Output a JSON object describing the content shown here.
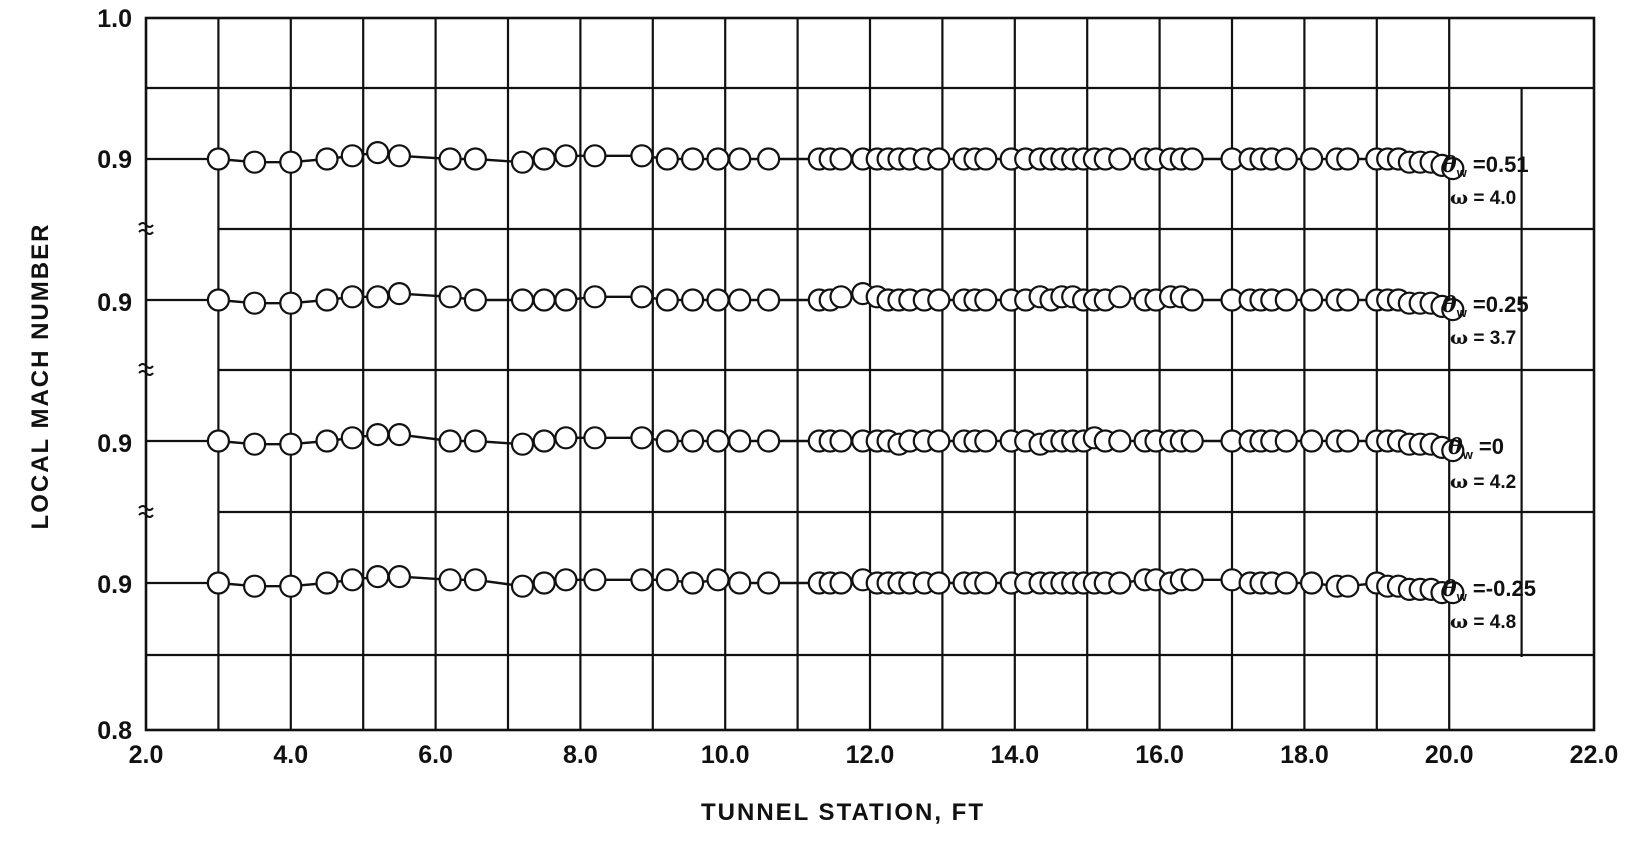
{
  "chart_data": {
    "type": "scatter",
    "title": "",
    "xlabel": "TUNNEL STATION, FT",
    "ylabel": "LOCAL MACH NUMBER",
    "xlim": [
      2.0,
      22.0
    ],
    "x_ticks": [
      "2.0",
      "4.0",
      "6.0",
      "8.0",
      "10.0",
      "12.0",
      "14.0",
      "16.0",
      "18.0",
      "20.0",
      "22.0"
    ],
    "y_ticks": [
      "1.0",
      "0.9",
      "0.9",
      "0.9",
      "0.9",
      "0.8"
    ],
    "grid": true,
    "annotations": [
      {
        "theta": "0.51",
        "omega": "4.0"
      },
      {
        "theta": "0.25",
        "omega": "3.7"
      },
      {
        "theta": "0",
        "omega": "4.2"
      },
      {
        "theta": "-0.25",
        "omega": "4.8"
      }
    ],
    "series": [
      {
        "x": [
          3.0,
          3.5,
          4.0,
          4.5,
          4.85,
          5.2,
          5.5,
          6.2,
          6.55,
          7.2,
          7.5,
          7.8,
          8.2,
          8.85,
          9.2,
          9.55,
          9.9,
          10.2,
          10.6,
          11.3,
          11.45,
          11.6,
          11.9,
          12.1,
          12.25,
          12.4,
          12.55,
          12.75,
          12.95,
          13.3,
          13.45,
          13.6,
          13.95,
          14.15,
          14.35,
          14.5,
          14.65,
          14.8,
          14.95,
          15.1,
          15.25,
          15.45,
          15.8,
          15.95,
          16.15,
          16.3,
          16.45,
          17.0,
          17.25,
          17.4,
          17.55,
          17.75,
          18.1,
          18.45,
          18.6,
          19.0,
          19.15,
          19.3,
          19.45,
          19.6,
          19.75,
          19.9,
          20.05
        ],
        "y": [
          0.9,
          0.899,
          0.899,
          0.9,
          0.901,
          0.902,
          0.901,
          0.9,
          0.9,
          0.899,
          0.9,
          0.901,
          0.901,
          0.901,
          0.9,
          0.9,
          0.9,
          0.9,
          0.9,
          0.9,
          0.9,
          0.9,
          0.9,
          0.9,
          0.9,
          0.9,
          0.9,
          0.9,
          0.9,
          0.9,
          0.9,
          0.9,
          0.9,
          0.9,
          0.9,
          0.9,
          0.9,
          0.9,
          0.9,
          0.9,
          0.9,
          0.9,
          0.9,
          0.9,
          0.9,
          0.9,
          0.9,
          0.9,
          0.9,
          0.9,
          0.9,
          0.9,
          0.9,
          0.9,
          0.9,
          0.9,
          0.9,
          0.9,
          0.899,
          0.899,
          0.899,
          0.898,
          0.897
        ]
      },
      {
        "x": [
          3.0,
          3.5,
          4.0,
          4.5,
          4.85,
          5.2,
          5.5,
          6.2,
          6.55,
          7.2,
          7.5,
          7.8,
          8.2,
          8.85,
          9.2,
          9.55,
          9.9,
          10.2,
          10.6,
          11.3,
          11.45,
          11.6,
          11.9,
          12.1,
          12.25,
          12.4,
          12.55,
          12.75,
          12.95,
          13.3,
          13.45,
          13.6,
          13.95,
          14.15,
          14.35,
          14.5,
          14.65,
          14.8,
          14.95,
          15.1,
          15.25,
          15.45,
          15.8,
          15.95,
          16.15,
          16.3,
          16.45,
          17.0,
          17.25,
          17.4,
          17.55,
          17.75,
          18.1,
          18.45,
          18.6,
          19.0,
          19.15,
          19.3,
          19.45,
          19.6,
          19.75,
          19.9,
          20.05
        ],
        "y": [
          0.9,
          0.899,
          0.899,
          0.9,
          0.901,
          0.901,
          0.902,
          0.901,
          0.9,
          0.9,
          0.9,
          0.9,
          0.901,
          0.901,
          0.9,
          0.9,
          0.9,
          0.9,
          0.9,
          0.9,
          0.9,
          0.901,
          0.902,
          0.901,
          0.9,
          0.9,
          0.9,
          0.9,
          0.9,
          0.9,
          0.9,
          0.9,
          0.9,
          0.9,
          0.901,
          0.9,
          0.901,
          0.901,
          0.9,
          0.9,
          0.9,
          0.901,
          0.9,
          0.9,
          0.901,
          0.901,
          0.9,
          0.9,
          0.9,
          0.9,
          0.9,
          0.9,
          0.9,
          0.9,
          0.9,
          0.9,
          0.9,
          0.9,
          0.899,
          0.899,
          0.899,
          0.898,
          0.897
        ]
      },
      {
        "x": [
          3.0,
          3.5,
          4.0,
          4.5,
          4.85,
          5.2,
          5.5,
          6.2,
          6.55,
          7.2,
          7.5,
          7.8,
          8.2,
          8.85,
          9.2,
          9.55,
          9.9,
          10.2,
          10.6,
          11.3,
          11.45,
          11.6,
          11.9,
          12.1,
          12.25,
          12.4,
          12.55,
          12.75,
          12.95,
          13.3,
          13.45,
          13.6,
          13.95,
          14.15,
          14.35,
          14.5,
          14.65,
          14.8,
          14.95,
          15.1,
          15.25,
          15.45,
          15.8,
          15.95,
          16.15,
          16.3,
          16.45,
          17.0,
          17.25,
          17.4,
          17.55,
          17.75,
          18.1,
          18.45,
          18.6,
          19.0,
          19.15,
          19.3,
          19.45,
          19.6,
          19.75,
          19.9,
          20.05
        ],
        "y": [
          0.9,
          0.899,
          0.899,
          0.9,
          0.901,
          0.902,
          0.902,
          0.9,
          0.9,
          0.899,
          0.9,
          0.901,
          0.901,
          0.901,
          0.9,
          0.9,
          0.9,
          0.9,
          0.9,
          0.9,
          0.9,
          0.9,
          0.9,
          0.9,
          0.9,
          0.899,
          0.9,
          0.9,
          0.9,
          0.9,
          0.9,
          0.9,
          0.9,
          0.9,
          0.899,
          0.9,
          0.9,
          0.9,
          0.9,
          0.901,
          0.9,
          0.9,
          0.9,
          0.9,
          0.9,
          0.9,
          0.9,
          0.9,
          0.9,
          0.9,
          0.9,
          0.9,
          0.9,
          0.9,
          0.9,
          0.9,
          0.9,
          0.9,
          0.899,
          0.899,
          0.899,
          0.898,
          0.897
        ]
      },
      {
        "x": [
          3.0,
          3.5,
          4.0,
          4.5,
          4.85,
          5.2,
          5.5,
          6.2,
          6.55,
          7.2,
          7.5,
          7.8,
          8.2,
          8.85,
          9.2,
          9.55,
          9.9,
          10.2,
          10.6,
          11.3,
          11.45,
          11.6,
          11.9,
          12.1,
          12.25,
          12.4,
          12.55,
          12.75,
          12.95,
          13.3,
          13.45,
          13.6,
          13.95,
          14.15,
          14.35,
          14.5,
          14.65,
          14.8,
          14.95,
          15.1,
          15.25,
          15.45,
          15.8,
          15.95,
          16.15,
          16.3,
          16.45,
          17.0,
          17.25,
          17.4,
          17.55,
          17.75,
          18.1,
          18.45,
          18.6,
          19.0,
          19.15,
          19.3,
          19.45,
          19.6,
          19.75,
          19.9,
          20.05
        ],
        "y": [
          0.9,
          0.899,
          0.899,
          0.9,
          0.901,
          0.902,
          0.902,
          0.901,
          0.901,
          0.899,
          0.9,
          0.901,
          0.901,
          0.901,
          0.901,
          0.9,
          0.901,
          0.9,
          0.9,
          0.9,
          0.9,
          0.9,
          0.901,
          0.9,
          0.9,
          0.9,
          0.9,
          0.9,
          0.9,
          0.9,
          0.9,
          0.9,
          0.9,
          0.9,
          0.9,
          0.9,
          0.9,
          0.9,
          0.9,
          0.9,
          0.9,
          0.9,
          0.901,
          0.901,
          0.9,
          0.901,
          0.901,
          0.901,
          0.9,
          0.9,
          0.9,
          0.9,
          0.9,
          0.899,
          0.899,
          0.9,
          0.899,
          0.899,
          0.898,
          0.898,
          0.898,
          0.897,
          0.897
        ]
      }
    ]
  }
}
